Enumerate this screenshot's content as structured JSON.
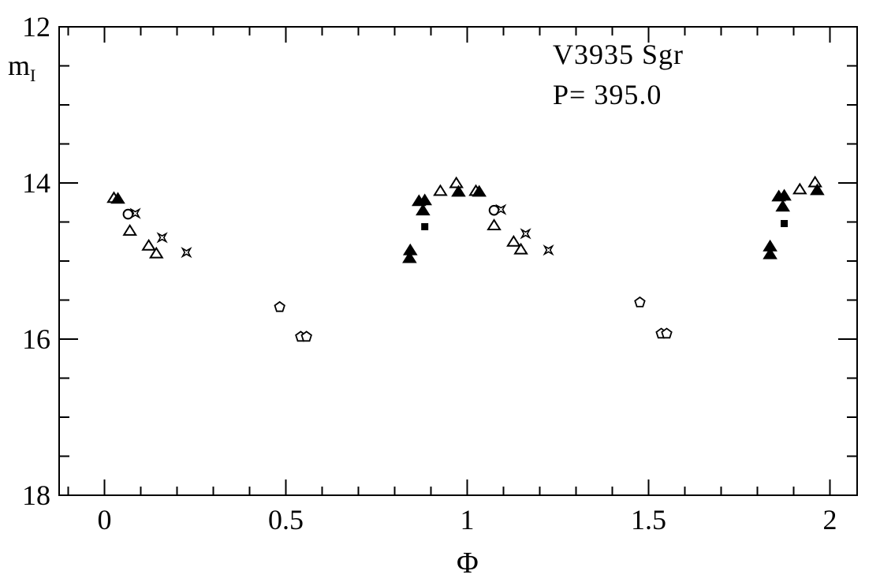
{
  "colors": {
    "ink": "#000000",
    "paper": "#ffffff"
  },
  "chart_data": {
    "type": "scatter",
    "title": "V3935 Sgr",
    "subtitle": "P= 395.0",
    "xlabel": "Φ",
    "ylabel_main": "m",
    "ylabel_sub": "I",
    "xlim": [
      -0.125,
      2.075
    ],
    "ylim": [
      18,
      12
    ],
    "grid": false,
    "legend": "none",
    "x_major_ticks": [
      0,
      0.5,
      1,
      1.5,
      2
    ],
    "x_major_labels": [
      "0",
      "0.5",
      "1",
      "1.5",
      "2"
    ],
    "x_minor_step": 0.1,
    "y_major_ticks": [
      12,
      14,
      16,
      18
    ],
    "y_major_labels": [
      "12",
      "14",
      "16",
      "18"
    ],
    "y_minor_step": 0.5,
    "series": [
      {
        "name": "open-pentagon",
        "marker": "open-pentagon",
        "points": [
          [
            0.483,
            15.59
          ],
          [
            0.541,
            15.97
          ],
          [
            0.557,
            15.97
          ],
          [
            1.476,
            15.53
          ],
          [
            1.535,
            15.93
          ],
          [
            1.55,
            15.93
          ]
        ]
      },
      {
        "name": "open-circle",
        "marker": "open-circle",
        "points": [
          [
            0.065,
            14.4
          ],
          [
            1.074,
            14.35
          ]
        ]
      },
      {
        "name": "four-point-star",
        "marker": "four-point-star",
        "points": [
          [
            0.085,
            14.39
          ],
          [
            0.159,
            14.7
          ],
          [
            0.226,
            14.89
          ],
          [
            1.093,
            14.34
          ],
          [
            1.161,
            14.65
          ],
          [
            1.224,
            14.86
          ]
        ]
      },
      {
        "name": "open-triangle",
        "marker": "open-triangle",
        "points": [
          [
            0.026,
            14.19
          ],
          [
            0.07,
            14.61
          ],
          [
            0.122,
            14.8
          ],
          [
            0.143,
            14.9
          ],
          [
            0.926,
            14.1
          ],
          [
            0.97,
            14.0
          ],
          [
            1.024,
            14.1
          ],
          [
            1.074,
            14.54
          ],
          [
            1.128,
            14.75
          ],
          [
            1.148,
            14.85
          ],
          [
            1.917,
            14.08
          ],
          [
            1.959,
            13.99
          ]
        ]
      },
      {
        "name": "filled-square",
        "marker": "filled-square",
        "points": [
          [
            0.883,
            14.56
          ],
          [
            1.874,
            14.52
          ]
        ]
      },
      {
        "name": "filled-triangle",
        "marker": "filled-triangle",
        "points": [
          [
            0.037,
            14.2
          ],
          [
            0.841,
            14.96
          ],
          [
            0.843,
            14.86
          ],
          [
            0.867,
            14.23
          ],
          [
            0.878,
            14.35
          ],
          [
            0.883,
            14.22
          ],
          [
            0.976,
            14.11
          ],
          [
            1.033,
            14.11
          ],
          [
            1.835,
            14.81
          ],
          [
            1.835,
            14.91
          ],
          [
            1.859,
            14.17
          ],
          [
            1.87,
            14.3
          ],
          [
            1.874,
            14.16
          ],
          [
            1.965,
            14.09
          ]
        ]
      }
    ]
  }
}
